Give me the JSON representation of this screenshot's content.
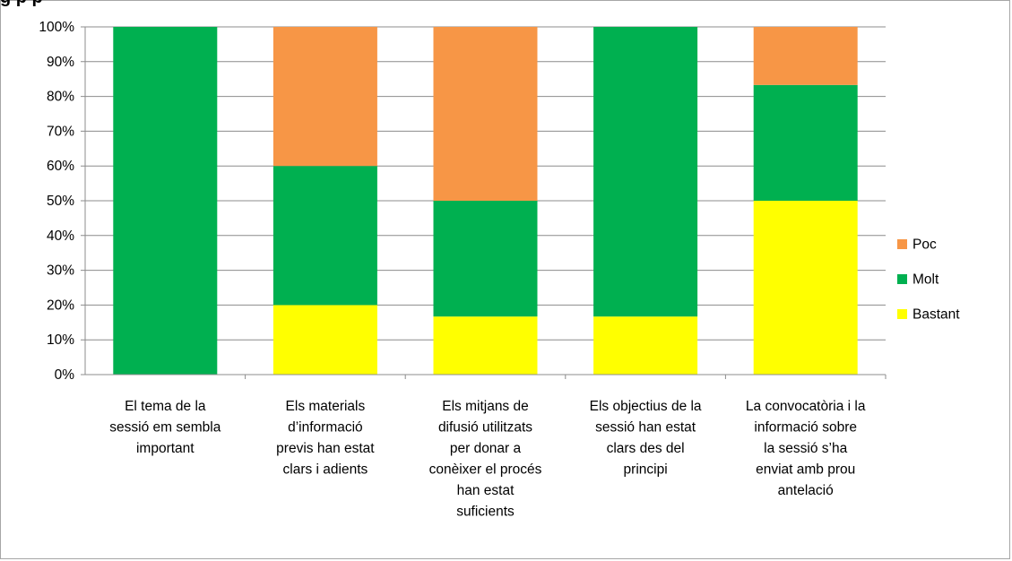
{
  "header": {
    "title_fragment": "g                                         p  p"
  },
  "chart_data": {
    "type": "bar",
    "stacked": true,
    "categories": [
      [
        "El tema de la",
        "sessió em sembla",
        "important"
      ],
      [
        "Els materials",
        "d’informació",
        "previs han estat",
        "clars i adients"
      ],
      [
        "Els mitjans  de",
        "difusió utilitzats",
        "per donar a",
        "conèixer el procés",
        "han estat",
        "suficients"
      ],
      [
        "Els objectius de la",
        "sessió han estat",
        "clars des del",
        "principi"
      ],
      [
        "La convocatòria i la",
        "informació sobre",
        "la sessió  s’ha",
        "enviat amb prou",
        "antelació"
      ]
    ],
    "series": [
      {
        "name": "Bastant",
        "color": "#ffff00",
        "values": [
          0,
          20,
          16.7,
          16.7,
          50
        ]
      },
      {
        "name": "Molt",
        "color": "#00b050",
        "values": [
          100,
          40,
          33.3,
          83.3,
          33.3
        ]
      },
      {
        "name": "Poc",
        "color": "#f79646",
        "values": [
          0,
          40,
          50,
          0,
          16.7
        ]
      }
    ],
    "ylim": [
      0,
      100
    ],
    "yticks": [
      "0%",
      "10%",
      "20%",
      "30%",
      "40%",
      "50%",
      "60%",
      "70%",
      "80%",
      "90%",
      "100%"
    ],
    "legend": {
      "placement": "right",
      "order": [
        "Poc",
        "Molt",
        "Bastant"
      ]
    },
    "grid": true
  }
}
